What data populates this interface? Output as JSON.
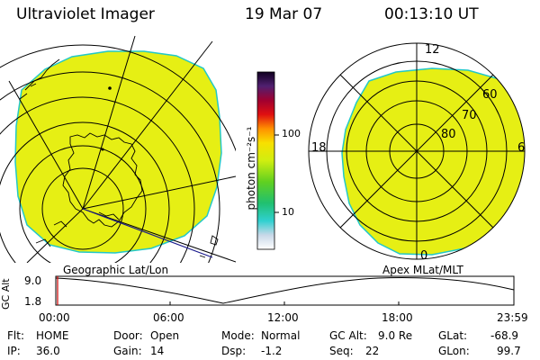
{
  "header": {
    "instrument": "Ultraviolet Imager",
    "date": "19 Mar 07",
    "time": "00:13:10 UT"
  },
  "map_labels": {
    "left": "Geographic Lat/Lon",
    "right": "Apex MLat/MLT"
  },
  "colorbar": {
    "unit_label": "photon cm⁻²s⁻¹",
    "ticks": [
      "100",
      "10"
    ]
  },
  "polar": {
    "mlt_labels": [
      "12",
      "18",
      "6",
      "0"
    ],
    "mlat_labels": [
      "60",
      "70",
      "80"
    ]
  },
  "altitude_plot": {
    "axis_label": "GC Alt",
    "y_ticks": [
      "9.0",
      "1.8"
    ],
    "x_ticks": [
      "00:00",
      "06:00",
      "12:00",
      "18:00",
      "23:59"
    ]
  },
  "status": {
    "flt_label": "Flt:",
    "flt_value": "HOME",
    "ip_label": "IP:",
    "ip_value": "36.0",
    "door_label": "Door:",
    "door_value": "Open",
    "gain_label": "Gain:",
    "gain_value": "14",
    "mode_label": "Mode:",
    "mode_value": "Normal",
    "dsp_label": "Dsp:",
    "dsp_value": "-1.2",
    "gcalt_label": "GC Alt:",
    "gcalt_value": "9.0 Re",
    "seq_label": "Seq:",
    "seq_value": "22",
    "glat_label": "GLat:",
    "glat_value": "-68.9",
    "glon_label": "GLon:",
    "glon_value": "99.7"
  },
  "colors": {
    "fill": "#e6ef14",
    "edge": "#22c8c8"
  }
}
